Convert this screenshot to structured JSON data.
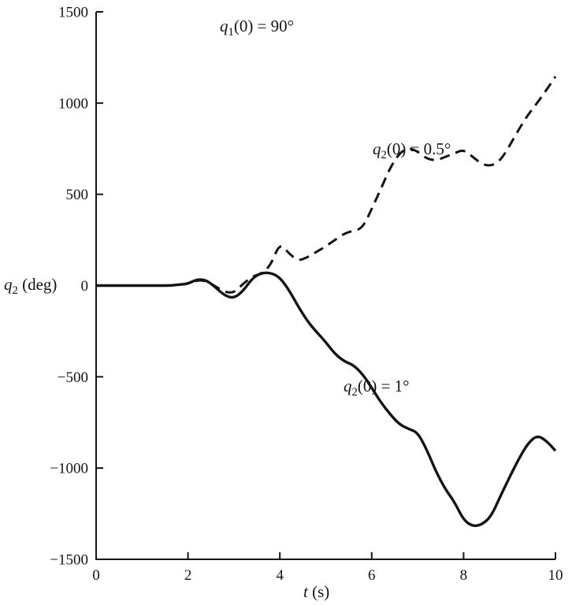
{
  "chart_data": {
    "type": "line",
    "title": "",
    "xlabel": "t (s)",
    "ylabel": "q2 (deg)",
    "xlim": [
      0,
      10
    ],
    "ylim": [
      -1500,
      1500
    ],
    "xticks": [
      0,
      2,
      4,
      6,
      8,
      10
    ],
    "yticks": [
      -1500,
      -1000,
      -500,
      0,
      500,
      1000,
      1500
    ],
    "grid": false,
    "legend_position": "inline-annotations",
    "color": "#141414",
    "x": [
      0,
      0.2,
      0.4,
      0.6,
      0.8,
      1,
      1.2,
      1.4,
      1.6,
      1.8,
      2,
      2.2,
      2.4,
      2.6,
      2.8,
      3,
      3.2,
      3.4,
      3.6,
      3.8,
      4,
      4.2,
      4.4,
      4.6,
      4.8,
      5,
      5.2,
      5.4,
      5.6,
      5.8,
      6,
      6.2,
      6.4,
      6.6,
      6.8,
      7,
      7.2,
      7.4,
      7.6,
      7.8,
      8,
      8.2,
      8.4,
      8.6,
      8.8,
      9,
      9.2,
      9.4,
      9.6,
      9.8,
      10
    ],
    "series": [
      {
        "name": "q2(0) = 0.5°",
        "line_style": "dashed",
        "values": [
          0,
          0,
          0,
          0,
          0,
          0,
          0,
          0,
          0,
          5,
          10,
          30,
          25,
          -5,
          -35,
          -40,
          10,
          50,
          65,
          110,
          235,
          175,
          135,
          155,
          185,
          215,
          250,
          285,
          300,
          315,
          420,
          530,
          645,
          725,
          755,
          735,
          695,
          685,
          705,
          725,
          745,
          705,
          665,
          655,
          685,
          765,
          855,
          935,
          1000,
          1070,
          1145
        ]
      },
      {
        "name": "q2(0) = 1°",
        "line_style": "solid",
        "values": [
          0,
          0,
          0,
          0,
          0,
          0,
          0,
          0,
          0,
          5,
          10,
          35,
          30,
          -10,
          -55,
          -70,
          -30,
          40,
          70,
          70,
          45,
          -25,
          -115,
          -195,
          -255,
          -310,
          -375,
          -415,
          -435,
          -485,
          -560,
          -640,
          -705,
          -760,
          -785,
          -805,
          -900,
          -1020,
          -1115,
          -1185,
          -1285,
          -1320,
          -1310,
          -1265,
          -1155,
          -1050,
          -950,
          -865,
          -820,
          -850,
          -905
        ]
      }
    ],
    "annotations": {
      "initial_condition": {
        "var": "q",
        "sub": "1",
        "rest": "(0) = 90°",
        "x": 3.1,
        "y": 1400
      },
      "dashed_label": {
        "var": "q",
        "sub": "2",
        "rest": "(0) = 0.5°",
        "x": 6.05,
        "y": 800
      },
      "solid_label": {
        "var": "q",
        "sub": "2",
        "rest": "(0) = 1°",
        "x": 5.4,
        "y": -560
      }
    },
    "axis_labels": {
      "y": {
        "var": "q",
        "sub": "2",
        "rest": " (deg)"
      },
      "x": {
        "var": "t",
        "rest": " (s)"
      }
    }
  }
}
